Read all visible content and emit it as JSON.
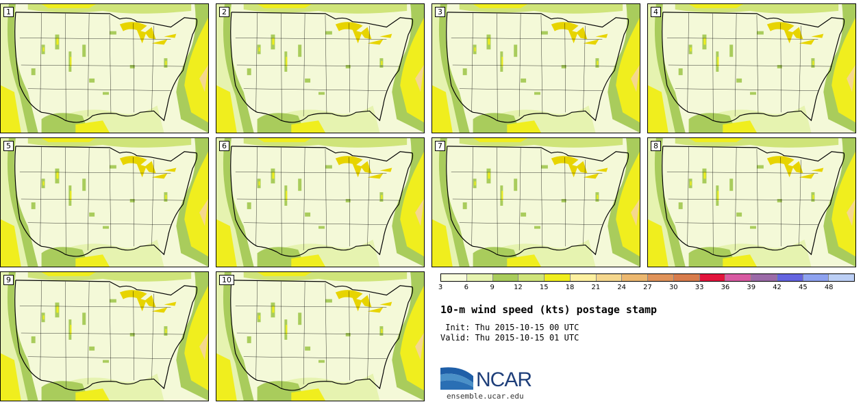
{
  "panels": [
    {
      "label": "1"
    },
    {
      "label": "2"
    },
    {
      "label": "3"
    },
    {
      "label": "4"
    },
    {
      "label": "5"
    },
    {
      "label": "6"
    },
    {
      "label": "7"
    },
    {
      "label": "8"
    },
    {
      "label": "9"
    },
    {
      "label": "10"
    }
  ],
  "legend": {
    "ticks": [
      "3",
      "6",
      "9",
      "12",
      "15",
      "18",
      "21",
      "24",
      "27",
      "30",
      "33",
      "36",
      "39",
      "42",
      "45",
      "48"
    ],
    "colors": [
      "#f8fcdc",
      "#e6f3b0",
      "#a9cc5c",
      "#cfe47a",
      "#f0ee1e",
      "#fdf0a0",
      "#f5d78e",
      "#ecb870",
      "#e0935a",
      "#d87c4c",
      "#e2143c",
      "#d85aa2",
      "#9b6aa8",
      "#6464e0",
      "#8ea2f0",
      "#bccff5"
    ]
  },
  "title": "10-m wind speed (kts) postage stamp",
  "init": " Init: Thu 2015-10-15 00 UTC",
  "valid": "Valid: Thu 2015-10-15 01 UTC",
  "logo": {
    "name": "NCAR",
    "url": "ensemble.ucar.edu"
  },
  "colors": {
    "land": "#f4f9d8",
    "ocean_fill": "#ecf27a",
    "coast_fill": "#9cc464",
    "lake": "#e7d400"
  }
}
